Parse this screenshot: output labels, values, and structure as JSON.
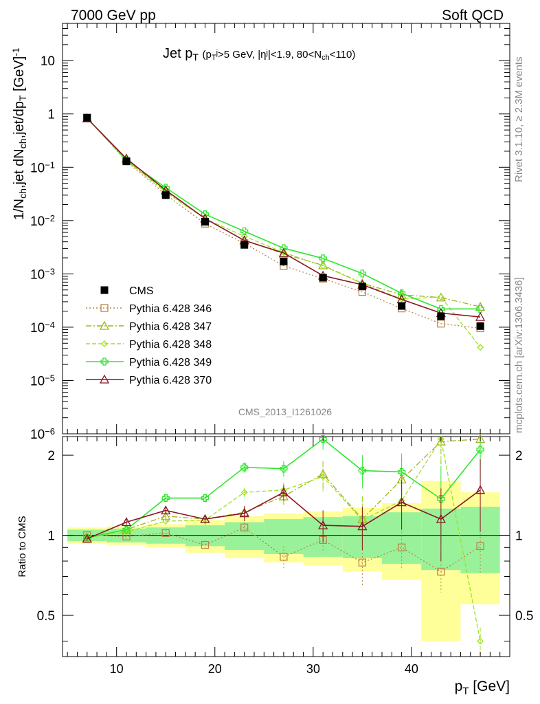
{
  "header": {
    "energy_label": "7000 GeV pp",
    "category_label": "Soft QCD"
  },
  "side_labels": {
    "rivet": "Rivet 3.1.10, ≥ 2.3M events",
    "mcplots": "mcplots.cern.ch [arXiv:1306.3436]"
  },
  "chart_data": {
    "type": "line",
    "title": "Jet p_T (p_T^j>5 GeV, |η^j|<1.9, 80<N_ch<110)",
    "analysis_id": "CMS_2013_I1261026",
    "xlabel": "p_T [GeV]",
    "ylabel": "1/N_ch,jet dN_ch,jet/dp_T [GeV]^-1",
    "ratio_ylabel": "Ratio to CMS",
    "xlim": [
      4.5,
      50
    ],
    "ylim": [
      1e-06,
      50
    ],
    "yscale": "log",
    "ratio_ylim": [
      0.35,
      2.35
    ],
    "ratio_yscale": "log",
    "x_ticks": [
      10,
      20,
      30,
      40
    ],
    "y_ticks": [
      {
        "value": 1e-06,
        "label": "10",
        "exp": "−6"
      },
      {
        "value": 1e-05,
        "label": "10",
        "exp": "−5"
      },
      {
        "value": 0.0001,
        "label": "10",
        "exp": "−4"
      },
      {
        "value": 0.001,
        "label": "10",
        "exp": "−3"
      },
      {
        "value": 0.01,
        "label": "10",
        "exp": "−2"
      },
      {
        "value": 0.1,
        "label": "10",
        "exp": "−1"
      },
      {
        "value": 1,
        "label": "1",
        "exp": ""
      },
      {
        "value": 10,
        "label": "10",
        "exp": ""
      }
    ],
    "ratio_ticks": [
      0.5,
      1,
      2
    ],
    "x": [
      7,
      11,
      15,
      19,
      23,
      27,
      31,
      35,
      39,
      43,
      47
    ],
    "x_edges": [
      5,
      9,
      13,
      17,
      21,
      25,
      29,
      33,
      37,
      41,
      45,
      49
    ],
    "data": {
      "name": "CMS",
      "values": [
        0.85,
        0.13,
        0.03,
        0.0095,
        0.0035,
        0.0017,
        0.00085,
        0.00058,
        0.00025,
        0.00016,
        0.000105
      ],
      "band_inner": [
        0.05,
        0.06,
        0.07,
        0.09,
        0.12,
        0.15,
        0.17,
        0.18,
        0.22,
        0.26,
        0.28
      ],
      "band_outer": [
        0.07,
        0.08,
        0.1,
        0.14,
        0.18,
        0.21,
        0.23,
        0.27,
        0.32,
        0.6,
        0.45
      ]
    },
    "series": [
      {
        "name": "Pythia 6.428 346",
        "color": "#b8864b",
        "dash": "2,3",
        "marker": "square",
        "ratio": [
          1.0,
          0.99,
          1.02,
          0.92,
          1.07,
          0.83,
          0.96,
          0.79,
          0.9,
          0.73,
          0.91
        ],
        "ratio_err": [
          0.02,
          0.02,
          0.03,
          0.04,
          0.05,
          0.08,
          0.1,
          0.15,
          0.16,
          0.12,
          0.2
        ]
      },
      {
        "name": "Pythia 6.428 347",
        "color": "#a2b21a",
        "dash": "8,3,2,3",
        "marker": "triangle",
        "ratio": [
          0.98,
          1.05,
          1.18,
          1.15,
          1.22,
          1.4,
          1.7,
          1.15,
          1.62,
          2.25,
          2.3
        ],
        "ratio_err": [
          0.02,
          0.02,
          0.03,
          0.05,
          0.06,
          0.1,
          0.2,
          0.25,
          0.35,
          0.4,
          0.6
        ]
      },
      {
        "name": "Pythia 6.428 348",
        "color": "#9ee02a",
        "dash": "6,3",
        "marker": "diamond",
        "ratio": [
          0.98,
          1.03,
          1.13,
          1.14,
          1.45,
          1.48,
          1.66,
          1.14,
          1.35,
          2.3,
          0.4
        ],
        "ratio_err": [
          0.02,
          0.02,
          0.03,
          0.05,
          0.06,
          0.1,
          0.2,
          0.25,
          0.35,
          0.4,
          0.05
        ]
      },
      {
        "name": "Pythia 6.428 349",
        "color": "#2ee62e",
        "dash": "",
        "marker": "cross",
        "ratio": [
          0.98,
          1.05,
          1.38,
          1.38,
          1.8,
          1.78,
          2.3,
          1.75,
          1.73,
          1.37,
          2.1
        ],
        "ratio_err": [
          0.02,
          0.02,
          0.04,
          0.05,
          0.08,
          0.12,
          0.2,
          0.25,
          0.3,
          0.45,
          0.5
        ]
      },
      {
        "name": "Pythia 6.428 370",
        "color": "#8a1622",
        "dash": "",
        "marker": "triangle",
        "ratio": [
          0.97,
          1.12,
          1.24,
          1.15,
          1.21,
          1.45,
          1.09,
          1.08,
          1.33,
          1.15,
          1.48
        ],
        "ratio_err": [
          0.02,
          0.03,
          0.04,
          0.05,
          0.08,
          0.1,
          0.15,
          0.2,
          0.28,
          0.35,
          0.45
        ]
      }
    ],
    "legend_position": "middle-left"
  }
}
